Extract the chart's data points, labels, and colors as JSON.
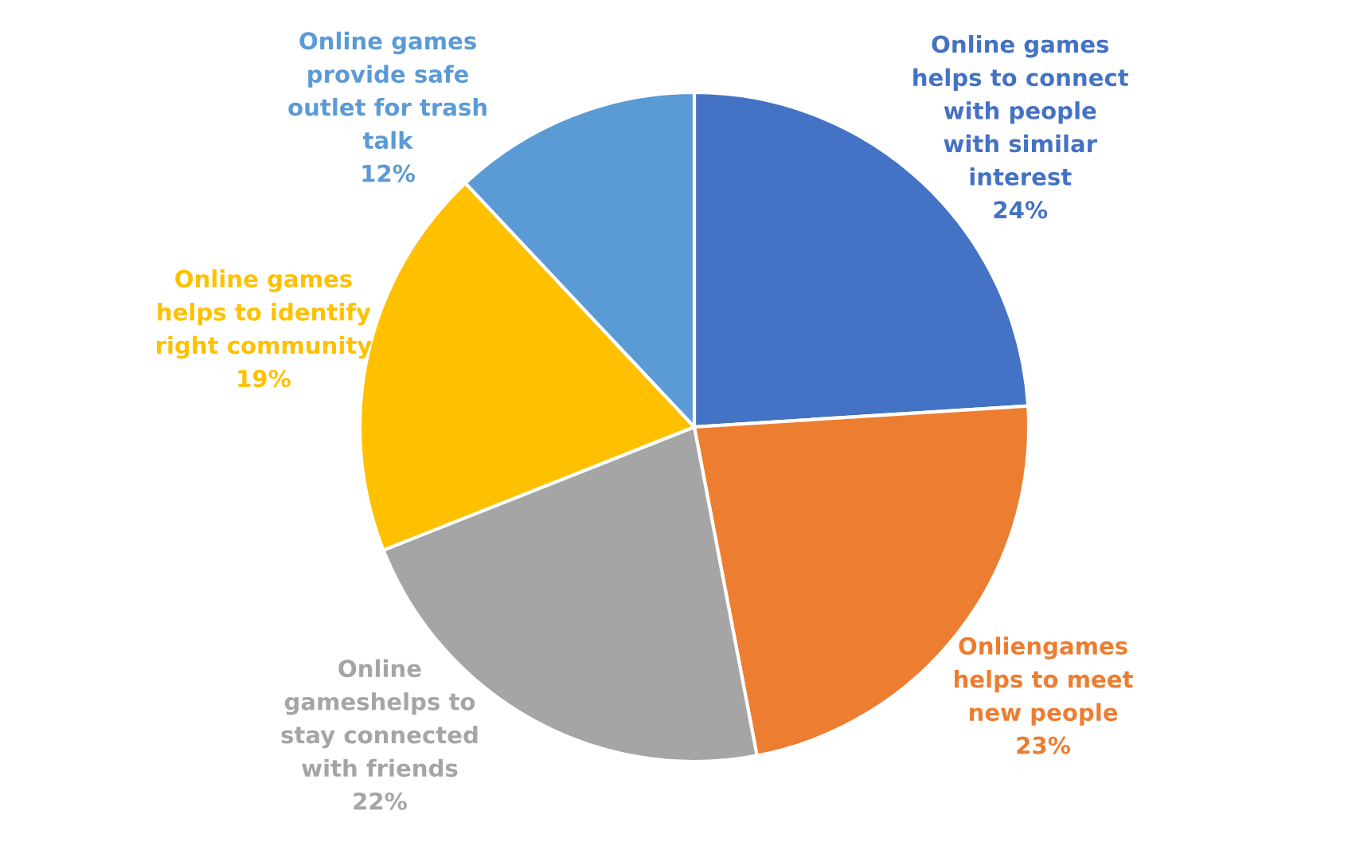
{
  "chart_data": {
    "type": "pie",
    "categories": [
      "Online games\nhelps to connect\nwith people\nwith similar\ninterest",
      "Onliengames\nhelps to meet\nnew people",
      "Online\ngameshelps to\nstay connected\nwith friends",
      "Online games\nhelps to identify\nright community",
      "Online games\nprovide safe\noutlet for trash\ntalk"
    ],
    "values": [
      24,
      23,
      22,
      19,
      12
    ],
    "value_labels": [
      "24%",
      "23%",
      "22%",
      "19%",
      "12%"
    ],
    "colors": [
      "#4472c4",
      "#ed7d31",
      "#a5a5a5",
      "#ffc000",
      "#5b9bd5"
    ],
    "legend": false
  }
}
